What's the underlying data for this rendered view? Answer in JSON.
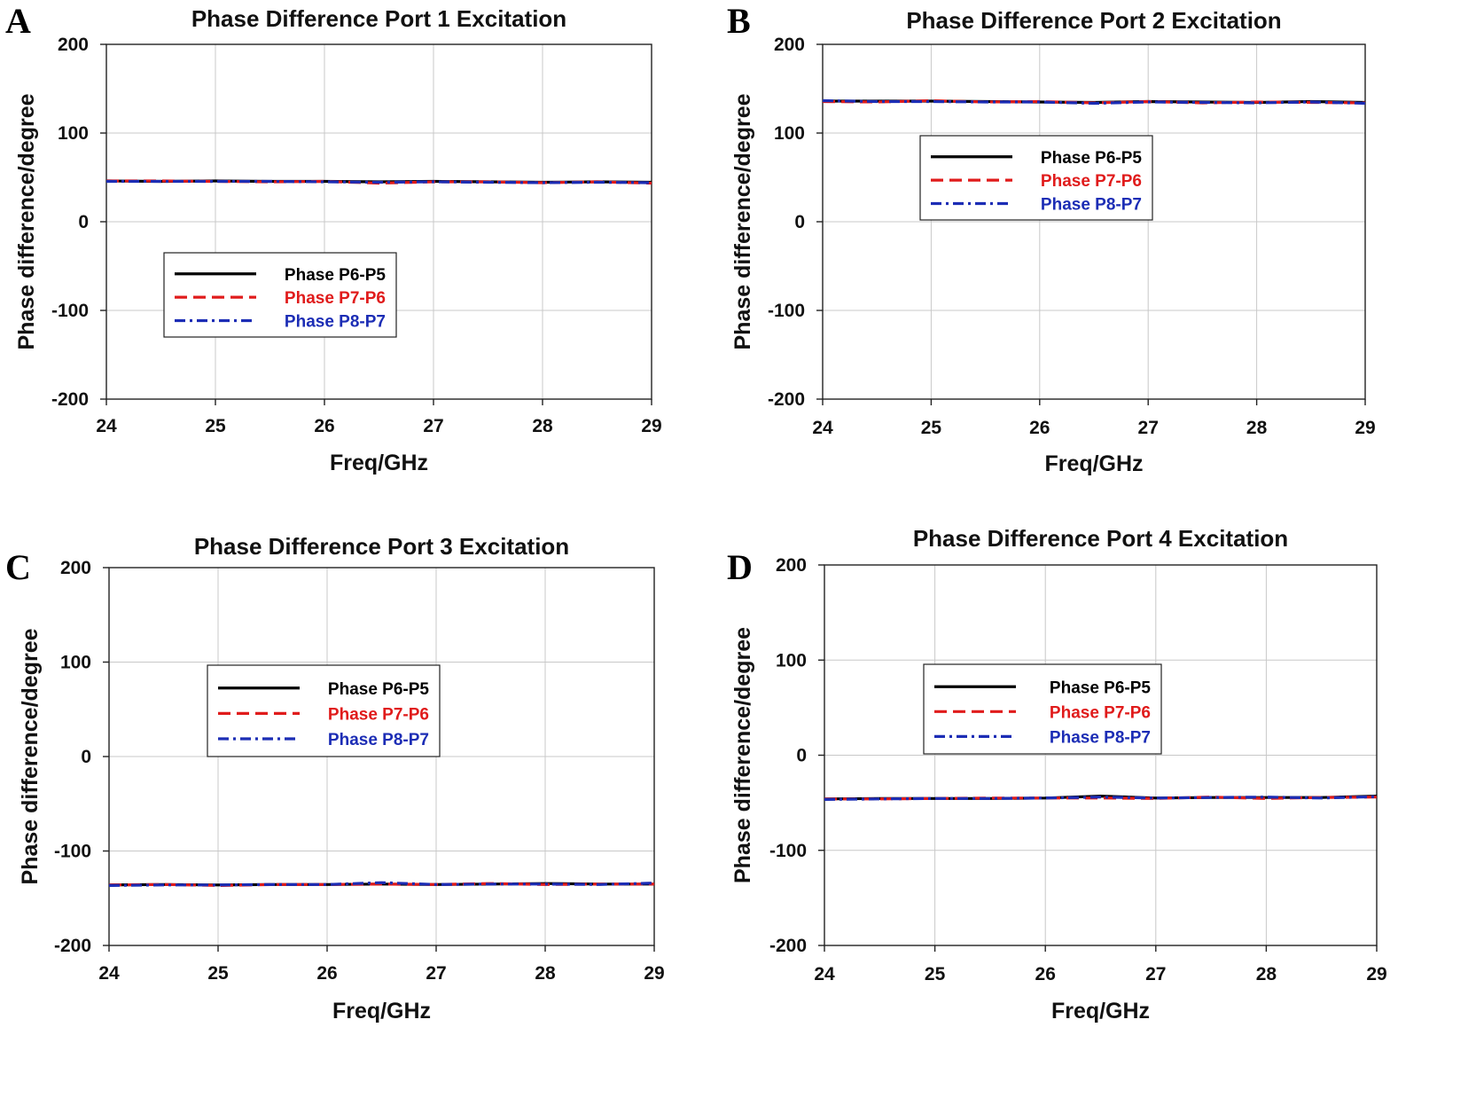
{
  "colors": {
    "series_1": "#000000",
    "series_2": "#e01b1b",
    "series_3": "#1c2db5",
    "grid": "#c8c8c8"
  },
  "chart_data": [
    {
      "panel_label": "A",
      "type": "line",
      "title": "Phase Difference Port 1 Excitation",
      "xlabel": "Freq/GHz",
      "ylabel": "Phase difference/degree",
      "xlim": [
        24,
        29
      ],
      "ylim": [
        -200,
        200
      ],
      "xticks": [
        "24",
        "25",
        "26",
        "27",
        "28",
        "29"
      ],
      "yticks": [
        "200",
        "100",
        "0",
        "-100",
        "-200"
      ],
      "grid": true,
      "legend_position": "center-left",
      "x": [
        24,
        24.5,
        25,
        25.5,
        26,
        26.5,
        27,
        27.5,
        28,
        28.5,
        29
      ],
      "series": [
        {
          "name": "Phase P6-P5",
          "style": "solid",
          "values": [
            46,
            45.5,
            46,
            45.5,
            45.5,
            45,
            45.5,
            45,
            44.5,
            45,
            44.5
          ]
        },
        {
          "name": "Phase P7-P6",
          "style": "dashed",
          "values": [
            46,
            46,
            45.5,
            45,
            45.5,
            43.5,
            45,
            45,
            44,
            45,
            43.5
          ]
        },
        {
          "name": "Phase P8-P7",
          "style": "dashdot",
          "values": [
            45.5,
            45.5,
            45.5,
            45.5,
            45,
            44.5,
            45,
            44.5,
            44,
            44.5,
            44
          ]
        }
      ]
    },
    {
      "panel_label": "B",
      "type": "line",
      "title": "Phase Difference Port 2 Excitation",
      "xlabel": "Freq/GHz",
      "ylabel": "Phase difference/degree",
      "xlim": [
        24,
        29
      ],
      "ylim": [
        -200,
        200
      ],
      "xticks": [
        "24",
        "25",
        "26",
        "27",
        "28",
        "29"
      ],
      "yticks": [
        "200",
        "100",
        "0",
        "-100",
        "-200"
      ],
      "grid": true,
      "legend_position": "upper-center",
      "x": [
        24,
        24.5,
        25,
        25.5,
        26,
        26.5,
        27,
        27.5,
        28,
        28.5,
        29
      ],
      "series": [
        {
          "name": "Phase P6-P5",
          "style": "solid",
          "values": [
            136,
            136,
            136,
            135.5,
            135,
            134.5,
            135.5,
            135,
            134.5,
            135.5,
            134.5
          ]
        },
        {
          "name": "Phase P7-P6",
          "style": "dashed",
          "values": [
            135.5,
            135,
            136.5,
            135,
            135.5,
            134,
            135.5,
            134,
            135,
            134.5,
            134
          ]
        },
        {
          "name": "Phase P8-P7",
          "style": "dashdot",
          "values": [
            136.5,
            135.5,
            135.5,
            135,
            135,
            133.5,
            135,
            134.5,
            134,
            135,
            133.5
          ]
        }
      ]
    },
    {
      "panel_label": "C",
      "type": "line",
      "title": "Phase Difference Port 3 Excitation",
      "xlabel": "Freq/GHz",
      "ylabel": "Phase difference/degree",
      "xlim": [
        24,
        29
      ],
      "ylim": [
        -200,
        200
      ],
      "xticks": [
        "24",
        "25",
        "26",
        "27",
        "28",
        "29"
      ],
      "yticks": [
        "200",
        "100",
        "0",
        "-100",
        "-200"
      ],
      "grid": true,
      "legend_position": "upper-center",
      "x": [
        24,
        24.5,
        25,
        25.5,
        26,
        26.5,
        27,
        27.5,
        28,
        28.5,
        29
      ],
      "series": [
        {
          "name": "Phase P6-P5",
          "style": "solid",
          "values": [
            -136,
            -135.5,
            -136,
            -135.5,
            -135.5,
            -135,
            -135.5,
            -135,
            -134.5,
            -135,
            -135
          ]
        },
        {
          "name": "Phase P7-P6",
          "style": "dashed",
          "values": [
            -136,
            -135.5,
            -136.5,
            -135.5,
            -135.5,
            -135,
            -135.5,
            -134.5,
            -135.5,
            -135,
            -135
          ]
        },
        {
          "name": "Phase P8-P7",
          "style": "dashdot",
          "values": [
            -136.5,
            -136,
            -136,
            -135.5,
            -135.5,
            -133.5,
            -135.5,
            -135,
            -135,
            -135.5,
            -134
          ]
        }
      ]
    },
    {
      "panel_label": "D",
      "type": "line",
      "title": "Phase Difference Port 4 Excitation",
      "xlabel": "Freq/GHz",
      "ylabel": "Phase difference/degree",
      "xlim": [
        24,
        29
      ],
      "ylim": [
        -200,
        200
      ],
      "xticks": [
        "24",
        "25",
        "26",
        "27",
        "28",
        "29"
      ],
      "yticks": [
        "200",
        "100",
        "0",
        "-100",
        "-200"
      ],
      "grid": true,
      "legend_position": "upper-center",
      "x": [
        24,
        24.5,
        25,
        25.5,
        26,
        26.5,
        27,
        27.5,
        28,
        28.5,
        29
      ],
      "series": [
        {
          "name": "Phase P6-P5",
          "style": "solid",
          "values": [
            -46,
            -45.5,
            -45.5,
            -45.5,
            -45,
            -43,
            -45,
            -44.5,
            -44.5,
            -44.5,
            -43
          ]
        },
        {
          "name": "Phase P7-P6",
          "style": "dashed",
          "values": [
            -46,
            -46,
            -45.5,
            -45,
            -45,
            -45,
            -45.5,
            -44,
            -45.5,
            -44.5,
            -44
          ]
        },
        {
          "name": "Phase P8-P7",
          "style": "dashdot",
          "values": [
            -46.5,
            -46,
            -45.5,
            -45.5,
            -45,
            -44,
            -45,
            -44.5,
            -44,
            -45,
            -43.5
          ]
        }
      ]
    }
  ]
}
